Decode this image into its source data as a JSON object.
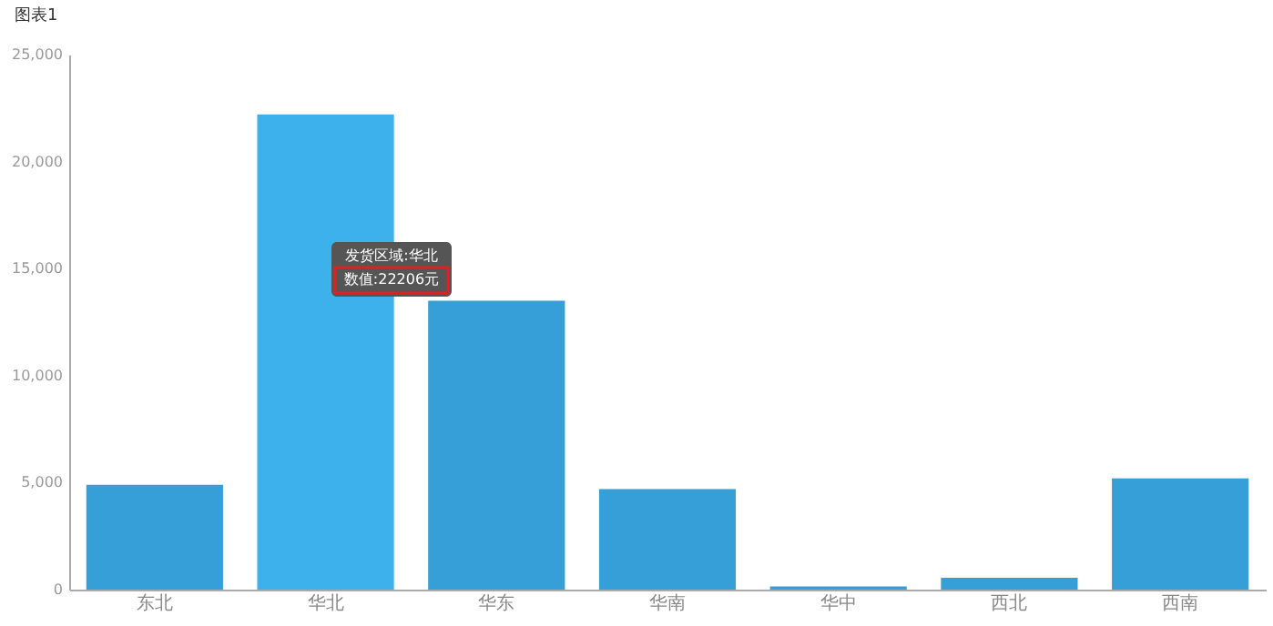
{
  "chart_data": {
    "type": "bar",
    "title": "图表1",
    "categories": [
      "东北",
      "华北",
      "华东",
      "华南",
      "华中",
      "西北",
      "西南"
    ],
    "values": [
      4900,
      22206,
      13500,
      4700,
      150,
      550,
      5200
    ],
    "colors": [
      "#379fd8",
      "#3db1ec",
      "#379fd8",
      "#379fd8",
      "#379fd8",
      "#379fd8",
      "#379fd8"
    ],
    "ylim": [
      0,
      25000
    ],
    "yticks": [
      0,
      {
        "value": 5000,
        "label": "5,000"
      },
      {
        "value": 10000,
        "label": "10,000"
      },
      {
        "value": 15000,
        "label": "15,000"
      },
      {
        "value": 20000,
        "label": "20,000"
      },
      {
        "value": 25000,
        "label": "25,000"
      }
    ],
    "grid": false,
    "annotations": [
      "发货区域:华北",
      "数值:22206元"
    ]
  }
}
